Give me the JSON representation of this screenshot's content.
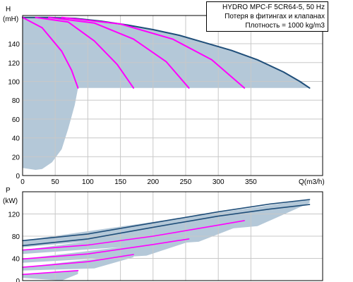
{
  "chart_data": [
    {
      "type": "line",
      "title": "HYDRO MPC-F 5CR64-5, 50 Hz",
      "annotations": [
        "Потеря в фитингах и клапанах",
        "Плотность = 1000 kg/m3"
      ],
      "ylabel": "H",
      "yunit": "(mH)",
      "xlabel": "Q(m3/h)",
      "xlim": [
        0,
        460
      ],
      "ylim": [
        0,
        170
      ],
      "xticks": [
        0,
        50,
        100,
        150,
        200,
        250,
        300,
        350
      ],
      "yticks": [
        0,
        20,
        40,
        60,
        80,
        100,
        120,
        140
      ],
      "grid": true,
      "colors": {
        "outer_curve": "#1f4e79",
        "speed_curves": "#ff00ff",
        "area": "#b4c8d8"
      },
      "series": [
        {
          "x": [
            0,
            40,
            80,
            120,
            160,
            200,
            240,
            280,
            320,
            360,
            400,
            425,
            440
          ],
          "y": [
            168,
            168,
            167,
            164,
            160,
            155,
            149,
            141,
            133,
            123,
            110,
            100,
            93
          ]
        },
        {
          "x": [
            0,
            30,
            60,
            75,
            85
          ],
          "y": [
            168,
            157,
            132,
            112,
            93
          ]
        },
        {
          "x": [
            20,
            70,
            110,
            145,
            170
          ],
          "y": [
            168,
            163,
            143,
            118,
            93
          ]
        },
        {
          "x": [
            40,
            110,
            170,
            220,
            255
          ],
          "y": [
            168,
            162,
            145,
            121,
            93
          ]
        },
        {
          "x": [
            60,
            150,
            230,
            290,
            340
          ],
          "y": [
            168,
            161,
            145,
            123,
            93
          ]
        }
      ],
      "shaded_area": {
        "x": [
          0,
          40,
          80,
          120,
          160,
          200,
          240,
          280,
          320,
          360,
          400,
          425,
          440,
          85,
          80,
          70,
          60,
          45,
          30,
          20,
          0
        ],
        "y": [
          168,
          168,
          167,
          164,
          160,
          155,
          149,
          141,
          133,
          123,
          110,
          100,
          93,
          93,
          75,
          50,
          28,
          14,
          7,
          6,
          8
        ]
      }
    },
    {
      "type": "line",
      "ylabel": "P",
      "yunit": "(kW)",
      "xlim": [
        0,
        460
      ],
      "ylim": [
        0,
        160
      ],
      "yticks": [
        0,
        40,
        80,
        120
      ],
      "ytick_labels": [
        "0",
        "40",
        "80",
        "120"
      ],
      "grid": true,
      "series": [
        {
          "x": [
            0,
            100,
            200,
            300,
            380,
            440
          ],
          "y": [
            72,
            84,
            104,
            124,
            138,
            146
          ]
        },
        {
          "x": [
            0,
            100,
            200,
            300,
            380,
            440
          ],
          "y": [
            63,
            75,
            96,
            116,
            129,
            137
          ]
        },
        {
          "x": [
            0,
            100,
            200,
            300,
            340
          ],
          "y": [
            55,
            64,
            80,
            100,
            108
          ]
        },
        {
          "x": [
            0,
            100,
            200,
            255
          ],
          "y": [
            39,
            48,
            65,
            75
          ]
        },
        {
          "x": [
            0,
            100,
            170
          ],
          "y": [
            24,
            34,
            47
          ]
        },
        {
          "x": [
            0,
            85
          ],
          "y": [
            11,
            18
          ]
        }
      ],
      "shaded_areas": [
        {
          "x": [
            0,
            440,
            440,
            360,
            0
          ],
          "y": [
            72,
            146,
            140,
            98,
            60
          ]
        },
        {
          "x": [
            0,
            340,
            340,
            270,
            0
          ],
          "y": [
            55,
            108,
            102,
            70,
            48
          ]
        },
        {
          "x": [
            0,
            255,
            255,
            190,
            0
          ],
          "y": [
            39,
            75,
            70,
            45,
            32
          ]
        },
        {
          "x": [
            0,
            170,
            170,
            110,
            0
          ],
          "y": [
            24,
            47,
            42,
            22,
            18
          ]
        },
        {
          "x": [
            0,
            85,
            85,
            60,
            0
          ],
          "y": [
            11,
            18,
            12,
            0,
            5
          ]
        }
      ]
    }
  ]
}
